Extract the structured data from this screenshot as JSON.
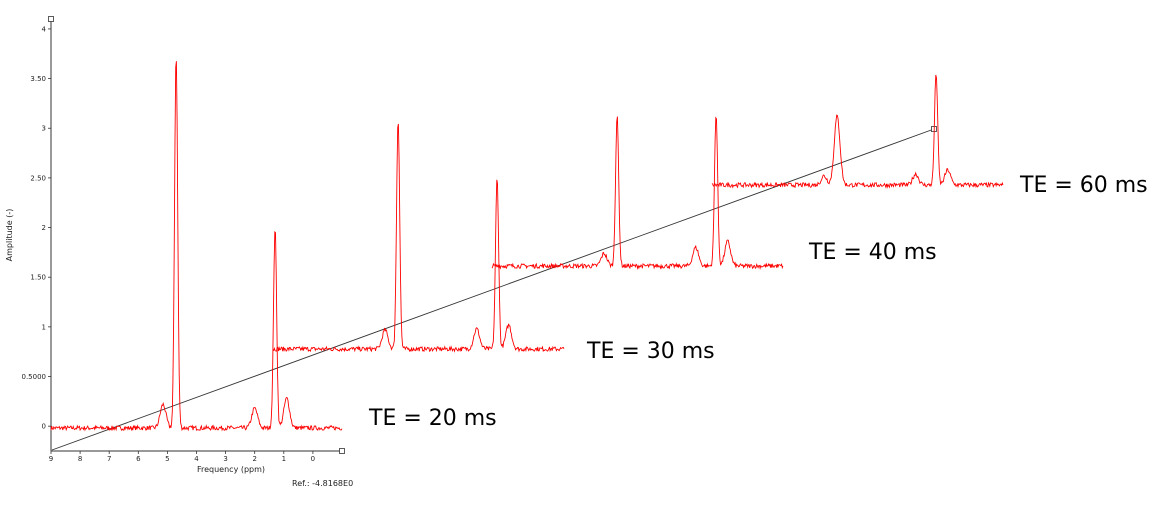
{
  "chart_data": {
    "type": "line",
    "title": "",
    "xlabel": "Frequency (ppm)",
    "ylabel": "Amplitude (-)",
    "reference": "Ref.: -4.8168E0",
    "x_ticks": [
      "9",
      "8",
      "7",
      "6",
      "5",
      "4",
      "3",
      "2",
      "1",
      "0"
    ],
    "y_ticks": [
      "0",
      "0.5000",
      "1",
      "1.50",
      "2",
      "2.50",
      "3",
      "3.50",
      "4"
    ],
    "xlim": [
      9,
      -1
    ],
    "ylim": [
      -0.25,
      4.1
    ],
    "line_color": "#ff0000",
    "series": [
      {
        "name": "TE = 20 ms",
        "peaks": [
          {
            "ppm": 4.7,
            "amp": 3.75
          },
          {
            "ppm": 1.3,
            "amp": 2.0
          },
          {
            "ppm": 5.15,
            "amp": 0.22
          },
          {
            "ppm": 2.0,
            "amp": 0.18
          },
          {
            "ppm": 0.9,
            "amp": 0.28
          }
        ]
      },
      {
        "name": "TE = 30 ms",
        "peaks": [
          {
            "ppm": 4.7,
            "amp": 3.1
          },
          {
            "ppm": 1.3,
            "amp": 2.5
          },
          {
            "ppm": 5.15,
            "amp": 0.97
          },
          {
            "ppm": 2.0,
            "amp": 0.98
          },
          {
            "ppm": 0.9,
            "amp": 1.02
          }
        ]
      },
      {
        "name": "TE = 40 ms",
        "peaks": [
          {
            "ppm": 4.7,
            "amp": 3.12
          },
          {
            "ppm": 1.3,
            "amp": 3.15
          },
          {
            "ppm": 5.15,
            "amp": 1.74
          },
          {
            "ppm": 2.0,
            "amp": 1.8
          },
          {
            "ppm": 0.9,
            "amp": 1.86
          }
        ]
      },
      {
        "name": "TE = 60 ms",
        "peaks": [
          {
            "ppm": 4.7,
            "amp": 3.12
          },
          {
            "ppm": 1.3,
            "amp": 3.56
          },
          {
            "ppm": 5.15,
            "amp": 2.52
          },
          {
            "ppm": 2.0,
            "amp": 2.54
          },
          {
            "ppm": 0.9,
            "amp": 2.58
          }
        ]
      }
    ]
  }
}
